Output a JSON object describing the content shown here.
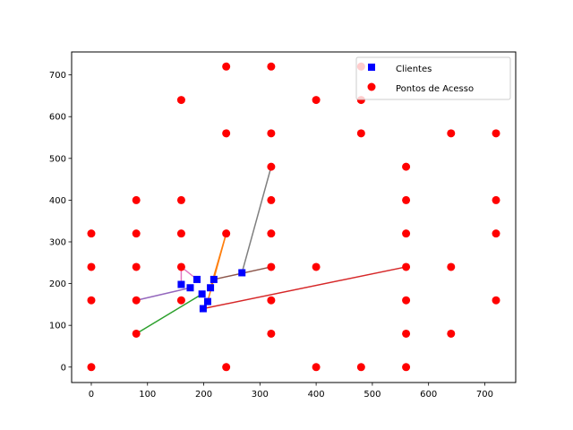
{
  "chart_data": {
    "type": "scatter",
    "title": "",
    "xlabel": "",
    "ylabel": "",
    "xlim": [
      -35,
      755
    ],
    "ylim": [
      -37,
      755
    ],
    "xticks": [
      0,
      100,
      200,
      300,
      400,
      500,
      600,
      700
    ],
    "yticks": [
      0,
      100,
      200,
      300,
      400,
      500,
      600,
      700
    ],
    "grid": false,
    "legend": {
      "placement": "top-right",
      "entries": [
        {
          "label": "Clientes",
          "marker": "square",
          "color": "#0000ff"
        },
        {
          "label": "Pontos de Acesso",
          "marker": "circle",
          "color": "#ff0000"
        }
      ]
    },
    "series": [
      {
        "name": "Clientes",
        "marker": "square",
        "color": "#0000ff",
        "points": [
          [
            160,
            198
          ],
          [
            176,
            190
          ],
          [
            188,
            210
          ],
          [
            197,
            175
          ],
          [
            199,
            140
          ],
          [
            207,
            157
          ],
          [
            212,
            190
          ],
          [
            218,
            210
          ],
          [
            268,
            226
          ]
        ]
      },
      {
        "name": "Pontos de Acesso",
        "marker": "circle",
        "color": "#ff0000",
        "points": [
          [
            0,
            0
          ],
          [
            0,
            160
          ],
          [
            0,
            240
          ],
          [
            0,
            320
          ],
          [
            80,
            80
          ],
          [
            80,
            160
          ],
          [
            80,
            240
          ],
          [
            80,
            320
          ],
          [
            80,
            400
          ],
          [
            160,
            160
          ],
          [
            160,
            240
          ],
          [
            160,
            320
          ],
          [
            160,
            400
          ],
          [
            160,
            640
          ],
          [
            240,
            0
          ],
          [
            240,
            320
          ],
          [
            240,
            560
          ],
          [
            240,
            720
          ],
          [
            320,
            80
          ],
          [
            320,
            160
          ],
          [
            320,
            240
          ],
          [
            320,
            320
          ],
          [
            320,
            400
          ],
          [
            320,
            480
          ],
          [
            320,
            560
          ],
          [
            320,
            720
          ],
          [
            400,
            0
          ],
          [
            400,
            240
          ],
          [
            400,
            640
          ],
          [
            480,
            0
          ],
          [
            480,
            560
          ],
          [
            480,
            640
          ],
          [
            480,
            720
          ],
          [
            560,
            0
          ],
          [
            560,
            80
          ],
          [
            560,
            160
          ],
          [
            560,
            240
          ],
          [
            560,
            320
          ],
          [
            560,
            400
          ],
          [
            560,
            480
          ],
          [
            640,
            80
          ],
          [
            640,
            240
          ],
          [
            640,
            560
          ],
          [
            720,
            160
          ],
          [
            720,
            320
          ],
          [
            720,
            400
          ],
          [
            720,
            560
          ]
        ]
      }
    ],
    "connections": [
      {
        "from": [
          160,
          198
        ],
        "to": [
          160,
          240
        ],
        "color": "#e377c2"
      },
      {
        "from": [
          176,
          190
        ],
        "to": [
          80,
          160
        ],
        "color": "#9467bd"
      },
      {
        "from": [
          188,
          210
        ],
        "to": [
          160,
          240
        ],
        "color": "#e377c2"
      },
      {
        "from": [
          197,
          175
        ],
        "to": [
          80,
          80
        ],
        "color": "#2ca02c"
      },
      {
        "from": [
          199,
          140
        ],
        "to": [
          560,
          240
        ],
        "color": "#d62728"
      },
      {
        "from": [
          207,
          157
        ],
        "to": [
          240,
          320
        ],
        "color": "#ff7f0e"
      },
      {
        "from": [
          212,
          190
        ],
        "to": [
          240,
          320
        ],
        "color": "#ff7f0e"
      },
      {
        "from": [
          218,
          210
        ],
        "to": [
          320,
          240
        ],
        "color": "#8c564b"
      },
      {
        "from": [
          268,
          226
        ],
        "to": [
          320,
          480
        ],
        "color": "#7f7f7f"
      }
    ]
  }
}
